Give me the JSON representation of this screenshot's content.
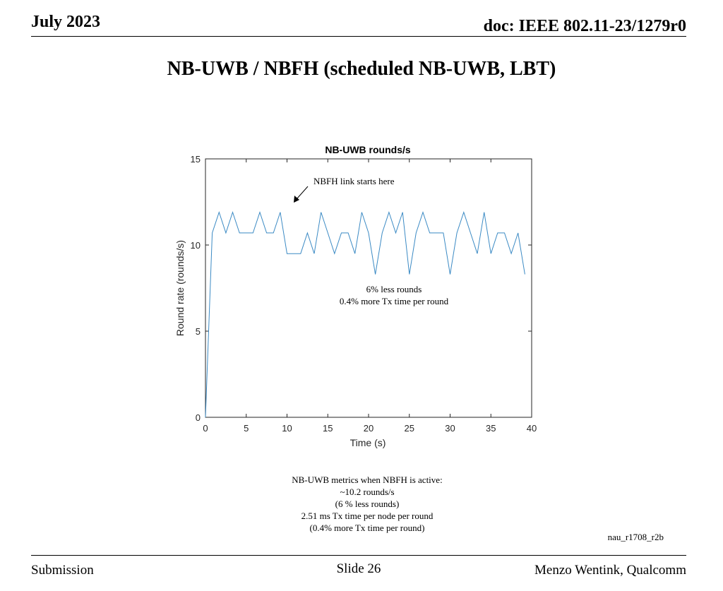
{
  "header": {
    "date": "July 2023",
    "doc": "doc: IEEE 802.11-23/1279r0"
  },
  "slide_title": "NB-UWB / NBFH (scheduled NB-UWB, LBT)",
  "chart_data": {
    "type": "line",
    "title": "NB-UWB rounds/s",
    "xlabel": "Time (s)",
    "ylabel": "Round rate (rounds/s)",
    "xlim": [
      0,
      40
    ],
    "ylim": [
      0,
      15
    ],
    "xticks": [
      0,
      5,
      10,
      15,
      20,
      25,
      30,
      35,
      40
    ],
    "yticks": [
      0,
      5,
      10,
      15
    ],
    "grid": false,
    "series_color": "#3b8ac4",
    "series": [
      {
        "x": [
          0,
          0.83,
          1.67,
          2.5,
          3.33,
          4.17,
          5.0,
          5.83,
          6.67,
          7.5,
          8.33,
          9.17,
          10.0,
          10.83,
          11.67,
          12.5,
          13.33,
          14.17,
          15.0,
          15.83,
          16.67,
          17.5,
          18.33,
          19.17,
          20.0,
          20.83,
          21.67,
          22.5,
          23.33,
          24.17,
          25.0,
          25.83,
          26.67,
          27.5,
          28.33,
          29.17,
          30.0,
          30.83,
          31.67,
          32.5,
          33.33,
          34.17,
          35.0,
          35.83,
          36.67,
          37.5,
          38.33,
          39.17
        ],
        "y": [
          0,
          10.7,
          11.9,
          10.7,
          11.9,
          10.7,
          10.7,
          10.7,
          11.9,
          10.7,
          10.7,
          11.9,
          9.5,
          9.5,
          9.5,
          10.7,
          9.5,
          11.9,
          10.7,
          9.5,
          10.7,
          10.7,
          9.5,
          11.9,
          10.7,
          8.3,
          10.7,
          11.9,
          10.7,
          11.9,
          8.3,
          10.7,
          11.9,
          10.7,
          10.7,
          10.7,
          8.3,
          10.7,
          11.9,
          10.7,
          9.5,
          11.9,
          9.5,
          10.7,
          10.7,
          9.5,
          10.7,
          8.3
        ]
      }
    ],
    "annotations": {
      "arrow_label": "NBFH link starts here",
      "note_line1": "6% less rounds",
      "note_line2": "0.4% more Tx time per round"
    }
  },
  "notes": {
    "line1": "NB-UWB metrics when NBFH is active:",
    "line2": "~10.2 rounds/s",
    "line3": "(6 % less rounds)",
    "line4": "2.51 ms Tx time per node per round",
    "line5": "(0.4% more Tx time per round)"
  },
  "tag": "nau_r1708_r2b",
  "footer": {
    "left": "Submission",
    "center": "Slide 26",
    "right": "Menzo Wentink, Qualcomm"
  }
}
